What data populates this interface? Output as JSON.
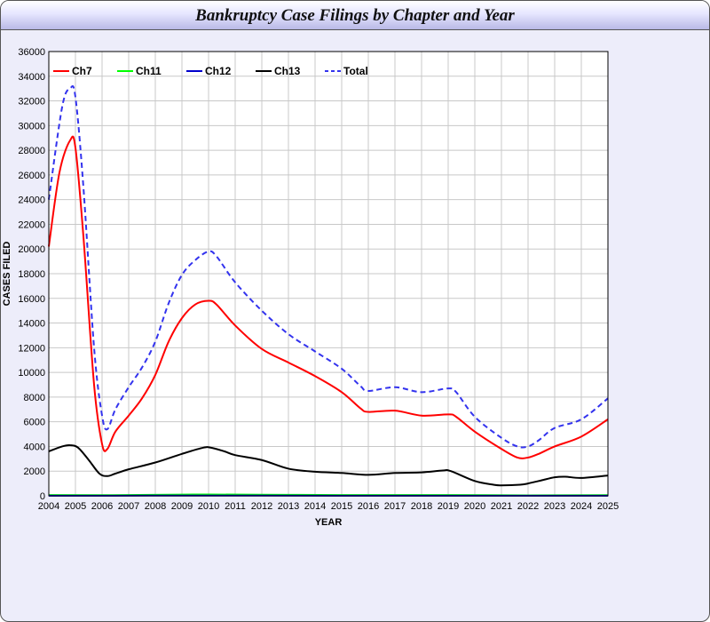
{
  "window": {
    "title": "Bankruptcy Case Filings by Chapter and Year"
  },
  "chart_data": {
    "type": "line",
    "title": "Bankruptcy Case Filings by Chapter and Year",
    "xlabel": "YEAR",
    "ylabel": "CASES FILED",
    "xlim": [
      2004,
      2025
    ],
    "ylim": [
      0,
      36000
    ],
    "x_ticks": [
      "2004",
      "2005",
      "2006",
      "2007",
      "2008",
      "2009",
      "2010",
      "2011",
      "2012",
      "2013",
      "2014",
      "2015",
      "2016",
      "2017",
      "2018",
      "2019",
      "2020",
      "2021",
      "2022",
      "2023",
      "2024",
      "2025"
    ],
    "y_ticks": [
      "0",
      "2000",
      "4000",
      "6000",
      "8000",
      "10000",
      "12000",
      "14000",
      "16000",
      "18000",
      "20000",
      "22000",
      "24000",
      "26000",
      "28000",
      "30000",
      "32000",
      "34000",
      "36000"
    ],
    "grid": true,
    "legend": "top-left",
    "series": [
      {
        "name": "Ch7",
        "color": "#ff0000",
        "dash": false,
        "points": [
          [
            2004,
            20200
          ],
          [
            2004.4,
            26200
          ],
          [
            2004.8,
            28800
          ],
          [
            2005,
            28200
          ],
          [
            2005.3,
            21000
          ],
          [
            2005.7,
            9000
          ],
          [
            2006,
            4200
          ],
          [
            2006.2,
            3800
          ],
          [
            2006.5,
            5200
          ],
          [
            2007,
            6500
          ],
          [
            2007.5,
            7900
          ],
          [
            2008,
            9800
          ],
          [
            2008.5,
            12500
          ],
          [
            2009,
            14400
          ],
          [
            2009.5,
            15500
          ],
          [
            2010,
            15800
          ],
          [
            2010.3,
            15500
          ],
          [
            2011,
            13800
          ],
          [
            2012,
            11900
          ],
          [
            2013,
            10800
          ],
          [
            2014,
            9700
          ],
          [
            2015,
            8400
          ],
          [
            2015.7,
            7100
          ],
          [
            2016,
            6800
          ],
          [
            2017,
            6900
          ],
          [
            2018,
            6500
          ],
          [
            2019,
            6600
          ],
          [
            2019.3,
            6400
          ],
          [
            2020,
            5200
          ],
          [
            2021,
            3800
          ],
          [
            2021.6,
            3100
          ],
          [
            2022,
            3100
          ],
          [
            2022.4,
            3400
          ],
          [
            2023,
            4000
          ],
          [
            2024,
            4800
          ],
          [
            2025,
            6200
          ]
        ]
      },
      {
        "name": "Ch11",
        "color": "#00ff00",
        "dash": false,
        "points": [
          [
            2004,
            60
          ],
          [
            2006,
            50
          ],
          [
            2009,
            100
          ],
          [
            2010,
            110
          ],
          [
            2013,
            80
          ],
          [
            2016,
            60
          ],
          [
            2019,
            60
          ],
          [
            2022,
            40
          ],
          [
            2025,
            50
          ]
        ]
      },
      {
        "name": "Ch12",
        "color": "#0000cc",
        "dash": false,
        "points": [
          [
            2004,
            10
          ],
          [
            2010,
            15
          ],
          [
            2016,
            10
          ],
          [
            2025,
            10
          ]
        ]
      },
      {
        "name": "Ch13",
        "color": "#000000",
        "dash": false,
        "points": [
          [
            2004,
            3600
          ],
          [
            2004.5,
            4000
          ],
          [
            2004.8,
            4100
          ],
          [
            2005.1,
            3900
          ],
          [
            2005.5,
            2900
          ],
          [
            2005.9,
            1800
          ],
          [
            2006.2,
            1600
          ],
          [
            2006.5,
            1800
          ],
          [
            2007,
            2150
          ],
          [
            2008,
            2700
          ],
          [
            2009,
            3400
          ],
          [
            2009.8,
            3900
          ],
          [
            2010.1,
            3900
          ],
          [
            2010.6,
            3600
          ],
          [
            2011,
            3300
          ],
          [
            2012,
            2900
          ],
          [
            2013,
            2200
          ],
          [
            2014,
            1950
          ],
          [
            2015,
            1850
          ],
          [
            2016,
            1700
          ],
          [
            2017,
            1850
          ],
          [
            2018,
            1900
          ],
          [
            2018.8,
            2050
          ],
          [
            2019.1,
            2000
          ],
          [
            2020,
            1200
          ],
          [
            2020.7,
            900
          ],
          [
            2021,
            850
          ],
          [
            2021.7,
            900
          ],
          [
            2022,
            1000
          ],
          [
            2022.5,
            1250
          ],
          [
            2023,
            1500
          ],
          [
            2023.4,
            1550
          ],
          [
            2024,
            1450
          ],
          [
            2025,
            1650
          ]
        ]
      },
      {
        "name": "Total",
        "color": "#3333ee",
        "dash": true,
        "points": [
          [
            2004,
            24000
          ],
          [
            2004.5,
            31500
          ],
          [
            2004.8,
            33000
          ],
          [
            2005,
            32300
          ],
          [
            2005.3,
            25000
          ],
          [
            2005.7,
            12000
          ],
          [
            2006,
            6500
          ],
          [
            2006.2,
            5400
          ],
          [
            2006.5,
            7000
          ],
          [
            2007,
            8800
          ],
          [
            2007.5,
            10400
          ],
          [
            2008,
            12500
          ],
          [
            2008.5,
            15600
          ],
          [
            2009,
            17900
          ],
          [
            2009.5,
            19100
          ],
          [
            2010,
            19800
          ],
          [
            2010.3,
            19400
          ],
          [
            2011,
            17300
          ],
          [
            2012,
            15000
          ],
          [
            2013,
            13100
          ],
          [
            2014,
            11700
          ],
          [
            2015,
            10300
          ],
          [
            2015.7,
            8900
          ],
          [
            2016,
            8500
          ],
          [
            2017,
            8800
          ],
          [
            2018,
            8400
          ],
          [
            2019,
            8700
          ],
          [
            2019.3,
            8400
          ],
          [
            2020,
            6400
          ],
          [
            2021,
            4700
          ],
          [
            2021.6,
            4000
          ],
          [
            2022,
            4000
          ],
          [
            2022.4,
            4500
          ],
          [
            2023,
            5500
          ],
          [
            2024,
            6200
          ],
          [
            2025,
            7900
          ]
        ]
      }
    ]
  }
}
